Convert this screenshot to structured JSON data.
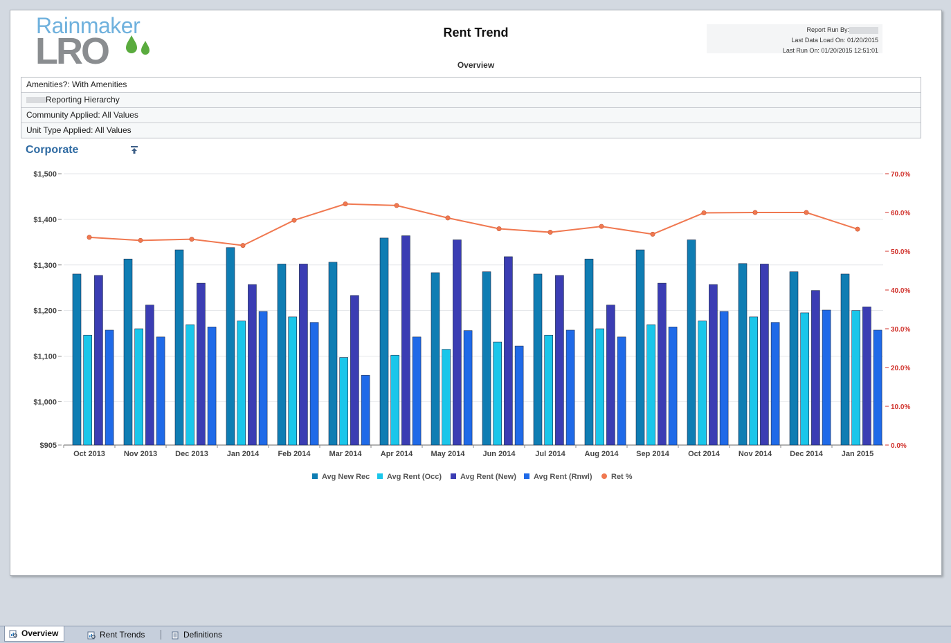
{
  "header": {
    "logo_top": "Rainmaker",
    "logo_bottom": "LRO",
    "title": "Rent Trend",
    "subtitle": "Overview",
    "report_run_by_label": "Report Run By:",
    "last_data_load": "Last Data Load On: 01/20/2015",
    "last_run": "Last Run On: 01/20/2015 12:51:01"
  },
  "filters": {
    "amenities": "Amenities?:  With Amenities",
    "hierarchy": "Reporting Hierarchy",
    "community": "Community Applied: All Values",
    "unit_type": "Unit Type Applied: All Values"
  },
  "section": {
    "title": "Corporate"
  },
  "tabs": [
    {
      "label": "Overview",
      "icon": "report-icon"
    },
    {
      "label": "Rent Trends",
      "icon": "report-icon"
    },
    {
      "label": "Definitions",
      "icon": "document-icon"
    }
  ],
  "colors": {
    "avg_new_rec": "#0f7db3",
    "avg_rent_occ": "#1ac6ea",
    "avg_rent_new": "#3b3db3",
    "avg_rent_rnwl": "#1f6ae8",
    "ret_pct": "#f07850",
    "right_axis": "#d0302a"
  },
  "chart_data": {
    "type": "bar",
    "categories": [
      "Oct 2013",
      "Nov 2013",
      "Dec 2013",
      "Jan 2014",
      "Feb 2014",
      "Mar 2014",
      "Apr 2014",
      "May 2014",
      "Jun 2014",
      "Jul 2014",
      "Aug 2014",
      "Sep 2014",
      "Oct 2014",
      "Nov 2014",
      "Dec 2014",
      "Jan 2015"
    ],
    "series": [
      {
        "name": "Avg New Rec",
        "type": "bar",
        "axis": "left",
        "values": [
          1280,
          1313,
          1333,
          1338,
          1302,
          1306,
          1359,
          1283,
          1285,
          1280,
          1313,
          1333,
          1355,
          1303,
          1285,
          1280
        ]
      },
      {
        "name": "Avg Rent (Occ)",
        "type": "bar",
        "axis": "left",
        "values": [
          1146,
          1160,
          1169,
          1177,
          1186,
          1097,
          1102,
          1115,
          1131,
          1146,
          1160,
          1169,
          1177,
          1186,
          1195,
          1200
        ]
      },
      {
        "name": "Avg Rent (New)",
        "type": "bar",
        "axis": "left",
        "values": [
          1277,
          1212,
          1260,
          1257,
          1302,
          1233,
          1364,
          1355,
          1318,
          1277,
          1212,
          1260,
          1257,
          1302,
          1244,
          1208
        ]
      },
      {
        "name": "Avg Rent (Rnwl)",
        "type": "bar",
        "axis": "left",
        "values": [
          1157,
          1142,
          1164,
          1198,
          1174,
          1058,
          1142,
          1156,
          1122,
          1157,
          1142,
          1164,
          1198,
          1174,
          1201,
          1157
        ]
      },
      {
        "name": "Ret %",
        "type": "line",
        "axis": "right",
        "values": [
          53.6,
          52.8,
          53.1,
          51.5,
          58.0,
          62.2,
          61.8,
          58.6,
          55.8,
          54.9,
          56.4,
          54.4,
          59.9,
          60.0,
          60.0,
          55.7
        ]
      }
    ],
    "y_left": {
      "min": 905,
      "max": 1500,
      "ticks": [
        905,
        1000,
        1100,
        1200,
        1300,
        1400,
        1500
      ],
      "tick_labels": [
        "$905",
        "$1,000",
        "$1,100",
        "$1,200",
        "$1,300",
        "$1,400",
        "$1,500"
      ]
    },
    "y_right": {
      "min": 0,
      "max": 70,
      "ticks": [
        0,
        10,
        20,
        30,
        40,
        50,
        60,
        70
      ],
      "tick_labels": [
        "0.0%",
        "10.0%",
        "20.0%",
        "30.0%",
        "40.0%",
        "50.0%",
        "60.0%",
        "70.0%"
      ]
    },
    "grid": true,
    "legend_position": "bottom"
  }
}
